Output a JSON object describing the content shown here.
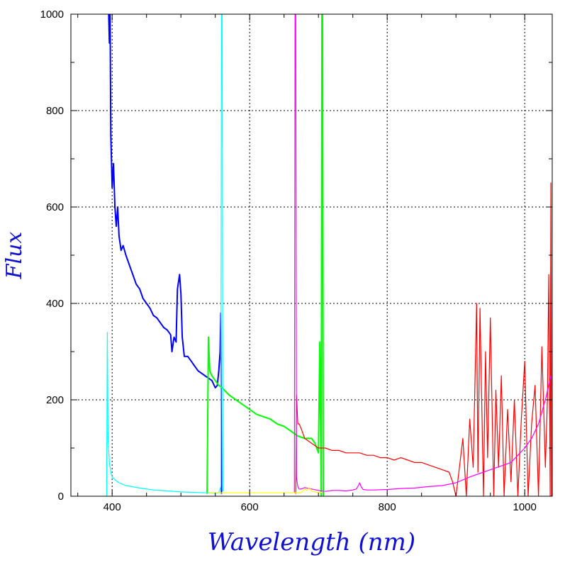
{
  "chart_data": {
    "type": "line",
    "title": "",
    "xlabel": "Wavelength (nm)",
    "ylabel": "Flux",
    "xlim": [
      340,
      1040
    ],
    "ylim": [
      0,
      1000
    ],
    "x_ticks": [
      400,
      600,
      800,
      1000
    ],
    "y_ticks": [
      0,
      200,
      400,
      600,
      800,
      1000
    ],
    "grid": true,
    "legend": "none",
    "colors": {
      "blue": "#0000ff",
      "green": "#00ff00",
      "red": "#ff0000",
      "cyan": "#00ffff",
      "magenta": "#ff00ff",
      "yellow": "#ffff00",
      "axis_title": "#1010d0"
    },
    "series": [
      {
        "color": "#0000ff",
        "x": [
          395,
          396,
          397,
          398,
          399,
          400,
          402,
          404,
          406,
          408,
          410,
          413,
          416,
          420,
          425,
          430,
          435,
          440,
          445,
          450,
          455,
          460,
          465,
          470,
          475,
          480,
          485,
          487,
          490,
          493,
          495,
          498,
          500,
          502,
          505,
          510,
          515,
          520,
          525,
          530,
          535,
          540,
          545,
          550,
          553,
          555,
          557,
          558,
          559
        ],
        "y": [
          1000,
          940,
          1000,
          750,
          700,
          640,
          690,
          600,
          560,
          600,
          540,
          510,
          520,
          500,
          480,
          460,
          440,
          430,
          410,
          400,
          390,
          375,
          370,
          360,
          350,
          345,
          335,
          300,
          330,
          320,
          430,
          460,
          420,
          330,
          290,
          290,
          280,
          270,
          260,
          255,
          250,
          245,
          240,
          225,
          230,
          260,
          300,
          380,
          5
        ]
      },
      {
        "color": "#00ff00",
        "x": [
          538,
          540,
          542,
          545,
          550,
          555,
          560,
          570,
          580,
          590,
          600,
          610,
          620,
          630,
          640,
          650,
          660,
          670,
          680,
          690,
          695,
          700,
          702,
          704,
          705,
          706,
          707
        ],
        "y": [
          5,
          330,
          260,
          250,
          240,
          230,
          225,
          210,
          200,
          190,
          180,
          170,
          165,
          160,
          150,
          145,
          135,
          125,
          120,
          120,
          110,
          90,
          320,
          0,
          1000,
          1000,
          0
        ]
      },
      {
        "color": "#ff0000",
        "x": [
          667,
          668,
          670,
          672,
          675,
          680,
          690,
          700,
          710,
          720,
          730,
          740,
          750,
          760,
          770,
          780,
          790,
          800,
          810,
          820,
          830,
          840,
          850,
          860,
          870,
          880,
          890,
          895,
          900,
          905,
          910,
          915,
          920,
          925,
          930,
          932,
          935,
          940,
          943,
          946,
          950,
          955,
          958,
          962,
          966,
          970,
          975,
          980,
          985,
          990,
          995,
          1000,
          1005,
          1010,
          1015,
          1020,
          1025,
          1030,
          1033,
          1035,
          1037,
          1038,
          1039
        ],
        "y": [
          5,
          210,
          150,
          150,
          140,
          120,
          110,
          100,
          100,
          95,
          95,
          90,
          90,
          90,
          85,
          85,
          80,
          80,
          75,
          80,
          75,
          70,
          70,
          65,
          60,
          55,
          50,
          30,
          0,
          60,
          120,
          0,
          160,
          60,
          400,
          50,
          390,
          0,
          300,
          80,
          370,
          0,
          220,
          60,
          250,
          0,
          180,
          30,
          200,
          0,
          160,
          280,
          0,
          150,
          230,
          0,
          310,
          60,
          200,
          460,
          0,
          650,
          0
        ]
      },
      {
        "color": "#00ffff",
        "x": [
          392,
          393,
          394,
          396,
          398,
          400,
          405,
          410,
          420,
          440,
          460,
          480,
          500,
          520,
          540,
          550,
          555,
          558,
          559,
          560,
          561
        ],
        "y": [
          0,
          340,
          120,
          70,
          50,
          40,
          33,
          28,
          22,
          17,
          13,
          11,
          9,
          8,
          7,
          6,
          7,
          20,
          1000,
          1000,
          10
        ]
      },
      {
        "color": "#ff00ff",
        "x": [
          665,
          666,
          667,
          668,
          670,
          672,
          675,
          680,
          690,
          700,
          710,
          720,
          730,
          740,
          750,
          755,
          758,
          760,
          762,
          765,
          770,
          780,
          800,
          820,
          840,
          860,
          880,
          900,
          920,
          940,
          960,
          980,
          1000,
          1010,
          1020,
          1030,
          1038
        ],
        "y": [
          8,
          1000,
          1000,
          40,
          20,
          15,
          15,
          18,
          15,
          12,
          10,
          12,
          12,
          11,
          13,
          15,
          22,
          28,
          20,
          14,
          13,
          13,
          14,
          16,
          17,
          20,
          22,
          28,
          40,
          50,
          60,
          70,
          100,
          120,
          150,
          200,
          250
        ]
      },
      {
        "color": "#ffff00",
        "x": [
          540,
          560,
          580,
          600,
          620,
          640,
          660,
          675,
          680,
          683,
          687,
          690,
          700,
          705
        ],
        "y": [
          7,
          7,
          7,
          7,
          7,
          7,
          7,
          7,
          15,
          12,
          18,
          10,
          8,
          8
        ]
      }
    ]
  }
}
